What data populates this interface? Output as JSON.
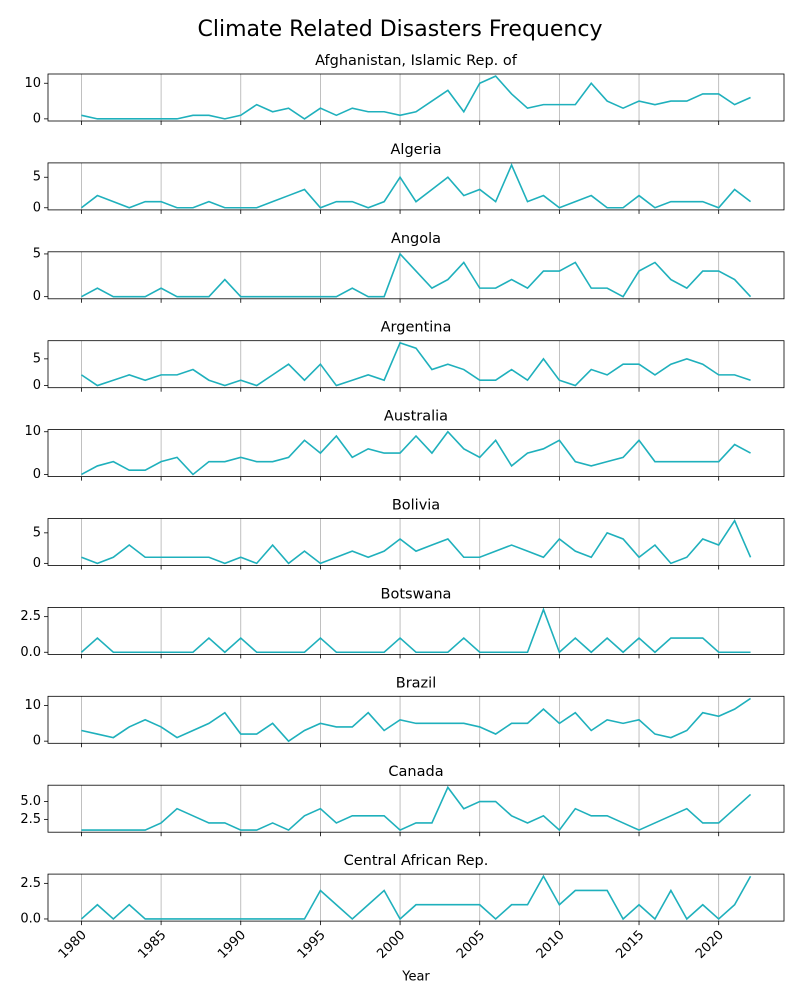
{
  "chart_data": {
    "type": "line",
    "title": "Climate Related Disasters Frequency",
    "x_label": "Year",
    "color": "#1fb0bc",
    "grid": "x",
    "x": [
      1980,
      1981,
      1982,
      1983,
      1984,
      1985,
      1986,
      1987,
      1988,
      1989,
      1990,
      1991,
      1992,
      1993,
      1994,
      1995,
      1996,
      1997,
      1998,
      1999,
      2000,
      2001,
      2002,
      2003,
      2004,
      2005,
      2006,
      2007,
      2008,
      2009,
      2010,
      2011,
      2012,
      2013,
      2014,
      2015,
      2016,
      2017,
      2018,
      2019,
      2020,
      2021,
      2022
    ],
    "xlim": [
      1977.9,
      2024.1
    ],
    "xticks": [
      1980,
      1985,
      1990,
      1995,
      2000,
      2005,
      2010,
      2015,
      2020
    ],
    "panels": [
      {
        "title": "Afghanistan, Islamic Rep. of",
        "ylim": [
          -0.6,
          12.6
        ],
        "yticks": [
          0,
          10
        ],
        "values": [
          1,
          0,
          0,
          0,
          0,
          0,
          0,
          1,
          1,
          0,
          1,
          4,
          2,
          3,
          0,
          3,
          1,
          3,
          2,
          2,
          1,
          2,
          5,
          8,
          2,
          10,
          12,
          7,
          3,
          4,
          4,
          4,
          10,
          5,
          3,
          5,
          4,
          5,
          5,
          7,
          7,
          4,
          6
        ]
      },
      {
        "title": "Algeria",
        "ylim": [
          -0.35,
          7.35
        ],
        "yticks": [
          0,
          5
        ],
        "values": [
          0,
          2,
          1,
          0,
          1,
          1,
          0,
          0,
          1,
          0,
          0,
          0,
          1,
          2,
          3,
          0,
          1,
          1,
          0,
          1,
          5,
          1,
          3,
          5,
          2,
          3,
          1,
          7,
          1,
          2,
          0,
          1,
          2,
          0,
          0,
          2,
          0,
          1,
          1,
          1,
          0,
          3,
          1
        ]
      },
      {
        "title": "Angola",
        "ylim": [
          -0.25,
          5.25
        ],
        "yticks": [
          0,
          5
        ],
        "values": [
          0,
          1,
          0,
          0,
          0,
          1,
          0,
          0,
          0,
          2,
          0,
          0,
          0,
          0,
          0,
          0,
          0,
          1,
          0,
          0,
          5,
          3,
          1,
          2,
          4,
          1,
          1,
          2,
          1,
          3,
          3,
          4,
          1,
          1,
          0,
          3,
          4,
          2,
          1,
          3,
          3,
          2,
          0
        ]
      },
      {
        "title": "Argentina",
        "ylim": [
          -0.4,
          8.4
        ],
        "yticks": [
          0,
          5
        ],
        "values": [
          2,
          0,
          1,
          2,
          1,
          2,
          2,
          3,
          1,
          0,
          1,
          0,
          2,
          4,
          1,
          4,
          0,
          1,
          2,
          1,
          8,
          7,
          3,
          4,
          3,
          1,
          1,
          3,
          1,
          5,
          1,
          0,
          3,
          2,
          4,
          4,
          2,
          4,
          5,
          4,
          2,
          2,
          1
        ]
      },
      {
        "title": "Australia",
        "ylim": [
          -0.5,
          10.5
        ],
        "yticks": [
          0,
          10
        ],
        "values": [
          0,
          2,
          3,
          1,
          1,
          3,
          4,
          0,
          3,
          3,
          4,
          3,
          3,
          4,
          8,
          5,
          9,
          4,
          6,
          5,
          5,
          9,
          5,
          10,
          6,
          4,
          8,
          2,
          5,
          6,
          8,
          3,
          2,
          3,
          4,
          8,
          3,
          3,
          3,
          3,
          3,
          7,
          5
        ]
      },
      {
        "title": "Bolivia",
        "ylim": [
          -0.35,
          7.35
        ],
        "yticks": [
          0,
          5
        ],
        "values": [
          1,
          0,
          1,
          3,
          1,
          1,
          1,
          1,
          1,
          0,
          1,
          0,
          3,
          0,
          2,
          0,
          1,
          2,
          1,
          2,
          4,
          2,
          3,
          4,
          1,
          1,
          2,
          3,
          2,
          1,
          4,
          2,
          1,
          5,
          4,
          1,
          3,
          0,
          1,
          4,
          3,
          7,
          1
        ]
      },
      {
        "title": "Botswana",
        "ylim": [
          -0.15,
          3.15
        ],
        "yticks": [
          {
            "value": 0,
            "label": "0.0"
          },
          {
            "value": 2.5,
            "label": "2.5"
          }
        ],
        "values": [
          0,
          1,
          0,
          0,
          0,
          0,
          0,
          0,
          1,
          0,
          1,
          0,
          0,
          0,
          0,
          1,
          0,
          0,
          0,
          0,
          1,
          0,
          0,
          0,
          1,
          0,
          0,
          0,
          0,
          3,
          0,
          1,
          0,
          1,
          0,
          1,
          0,
          1,
          1,
          1,
          0,
          0,
          0
        ]
      },
      {
        "title": "Brazil",
        "ylim": [
          -0.6,
          12.6
        ],
        "yticks": [
          0,
          10
        ],
        "values": [
          3,
          2,
          1,
          4,
          6,
          4,
          1,
          3,
          5,
          8,
          2,
          2,
          5,
          0,
          3,
          5,
          4,
          4,
          8,
          3,
          6,
          5,
          5,
          5,
          5,
          4,
          2,
          5,
          5,
          9,
          5,
          8,
          3,
          6,
          5,
          6,
          2,
          1,
          3,
          8,
          7,
          9,
          12
        ]
      },
      {
        "title": "Canada",
        "ylim": [
          0.7,
          7.3
        ],
        "yticks": [
          {
            "value": 2.5,
            "label": "2.5"
          },
          {
            "value": 5,
            "label": "5.0"
          }
        ],
        "values": [
          1,
          1,
          1,
          1,
          1,
          2,
          4,
          3,
          2,
          2,
          1,
          1,
          2,
          1,
          3,
          4,
          2,
          3,
          3,
          3,
          1,
          2,
          2,
          7,
          4,
          5,
          5,
          3,
          2,
          3,
          1,
          4,
          3,
          3,
          2,
          1,
          2,
          3,
          4,
          2,
          2,
          4,
          6
        ]
      },
      {
        "title": "Central African Rep.",
        "ylim": [
          -0.15,
          3.15
        ],
        "yticks": [
          {
            "value": 0,
            "label": "0.0"
          },
          {
            "value": 2.5,
            "label": "2.5"
          }
        ],
        "values": [
          0,
          1,
          0,
          1,
          0,
          0,
          0,
          0,
          0,
          0,
          0,
          0,
          0,
          0,
          0,
          2,
          1,
          0,
          1,
          2,
          0,
          1,
          1,
          1,
          1,
          1,
          0,
          1,
          1,
          3,
          1,
          2,
          2,
          2,
          0,
          1,
          0,
          2,
          0,
          1,
          0,
          1,
          3
        ]
      }
    ]
  }
}
